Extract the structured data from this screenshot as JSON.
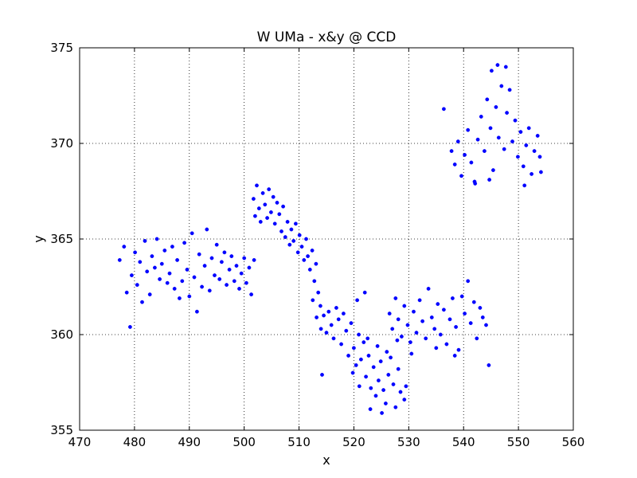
{
  "chart_data": {
    "type": "scatter",
    "title": "W UMa - x&y @ CCD",
    "xlabel": "x",
    "ylabel": "y",
    "xlim": [
      470,
      560
    ],
    "ylim": [
      355,
      375
    ],
    "x_ticks": [
      "470",
      "480",
      "490",
      "500",
      "510",
      "520",
      "530",
      "540",
      "550",
      "560"
    ],
    "y_ticks": [
      "355",
      "360",
      "365",
      "370",
      "375"
    ],
    "grid": true,
    "marker_color": "#0000ff",
    "series": [
      {
        "color": "#0000ff",
        "points": [
          [
            477.3,
            363.9
          ],
          [
            478.1,
            364.6
          ],
          [
            478.6,
            362.2
          ],
          [
            479.2,
            360.4
          ],
          [
            479.5,
            363.1
          ],
          [
            480.1,
            364.3
          ],
          [
            480.5,
            362.6
          ],
          [
            481.0,
            363.8
          ],
          [
            481.4,
            361.7
          ],
          [
            481.9,
            364.9
          ],
          [
            482.3,
            363.3
          ],
          [
            482.8,
            362.1
          ],
          [
            483.2,
            364.1
          ],
          [
            483.7,
            363.5
          ],
          [
            484.1,
            365.0
          ],
          [
            484.6,
            362.9
          ],
          [
            485.0,
            363.7
          ],
          [
            485.5,
            364.4
          ],
          [
            486.0,
            362.7
          ],
          [
            486.4,
            363.2
          ],
          [
            486.9,
            364.6
          ],
          [
            487.3,
            362.4
          ],
          [
            487.8,
            363.9
          ],
          [
            488.2,
            361.9
          ],
          [
            488.7,
            362.8
          ],
          [
            489.1,
            364.8
          ],
          [
            489.6,
            363.4
          ],
          [
            490.0,
            362.0
          ],
          [
            490.5,
            365.3
          ],
          [
            490.9,
            363.0
          ],
          [
            491.4,
            361.2
          ],
          [
            491.8,
            364.2
          ],
          [
            492.3,
            362.5
          ],
          [
            492.8,
            363.6
          ],
          [
            493.2,
            365.5
          ],
          [
            493.7,
            362.3
          ],
          [
            494.1,
            364.0
          ],
          [
            494.6,
            363.1
          ],
          [
            495.0,
            364.7
          ],
          [
            495.5,
            362.9
          ],
          [
            495.9,
            363.8
          ],
          [
            496.4,
            364.3
          ],
          [
            496.8,
            362.6
          ],
          [
            497.3,
            363.4
          ],
          [
            497.7,
            364.1
          ],
          [
            498.2,
            362.8
          ],
          [
            498.6,
            363.6
          ],
          [
            499.1,
            362.4
          ],
          [
            499.5,
            363.2
          ],
          [
            500.0,
            364.0
          ],
          [
            500.4,
            362.7
          ],
          [
            500.9,
            363.5
          ],
          [
            501.3,
            362.1
          ],
          [
            501.8,
            363.9
          ],
          [
            501.7,
            367.1
          ],
          [
            502.0,
            366.2
          ],
          [
            502.3,
            367.8
          ],
          [
            502.7,
            366.6
          ],
          [
            503.0,
            365.9
          ],
          [
            503.4,
            367.4
          ],
          [
            503.8,
            366.8
          ],
          [
            504.2,
            366.1
          ],
          [
            504.5,
            367.6
          ],
          [
            504.9,
            366.4
          ],
          [
            505.3,
            367.2
          ],
          [
            505.6,
            365.8
          ],
          [
            506.0,
            366.9
          ],
          [
            506.4,
            366.3
          ],
          [
            506.8,
            365.4
          ],
          [
            507.1,
            366.7
          ],
          [
            507.5,
            365.1
          ],
          [
            507.9,
            365.9
          ],
          [
            508.3,
            364.7
          ],
          [
            508.6,
            365.5
          ],
          [
            509.0,
            364.9
          ],
          [
            509.4,
            365.8
          ],
          [
            509.8,
            364.3
          ],
          [
            510.1,
            365.2
          ],
          [
            510.5,
            364.6
          ],
          [
            510.9,
            363.9
          ],
          [
            511.3,
            365.0
          ],
          [
            511.6,
            364.1
          ],
          [
            512.0,
            363.4
          ],
          [
            512.4,
            364.4
          ],
          [
            512.8,
            362.8
          ],
          [
            513.1,
            363.7
          ],
          [
            513.5,
            362.2
          ],
          [
            513.9,
            361.5
          ],
          [
            512.5,
            361.8
          ],
          [
            513.2,
            360.9
          ],
          [
            514.0,
            360.3
          ],
          [
            514.2,
            357.9
          ],
          [
            514.5,
            361.0
          ],
          [
            515.0,
            360.1
          ],
          [
            515.4,
            361.2
          ],
          [
            515.9,
            360.5
          ],
          [
            516.3,
            359.8
          ],
          [
            516.8,
            361.4
          ],
          [
            517.2,
            360.8
          ],
          [
            517.7,
            359.5
          ],
          [
            518.1,
            361.1
          ],
          [
            518.6,
            360.2
          ],
          [
            519.0,
            358.9
          ],
          [
            519.5,
            360.6
          ],
          [
            520.0,
            359.3
          ],
          [
            520.4,
            358.4
          ],
          [
            520.9,
            360.0
          ],
          [
            521.3,
            358.7
          ],
          [
            521.8,
            359.6
          ],
          [
            522.2,
            357.8
          ],
          [
            522.7,
            358.9
          ],
          [
            523.1,
            357.2
          ],
          [
            523.6,
            358.3
          ],
          [
            524.0,
            356.8
          ],
          [
            524.5,
            357.6
          ],
          [
            524.9,
            358.6
          ],
          [
            525.4,
            357.1
          ],
          [
            525.8,
            356.4
          ],
          [
            526.3,
            357.9
          ],
          [
            526.7,
            358.8
          ],
          [
            527.2,
            357.4
          ],
          [
            527.6,
            356.2
          ],
          [
            528.1,
            358.2
          ],
          [
            528.5,
            357.0
          ],
          [
            523.0,
            356.1
          ],
          [
            525.1,
            355.9
          ],
          [
            519.8,
            358.0
          ],
          [
            521.0,
            357.3
          ],
          [
            526.0,
            359.1
          ],
          [
            522.5,
            359.8
          ],
          [
            524.3,
            359.4
          ],
          [
            520.6,
            361.8
          ],
          [
            522.0,
            362.2
          ],
          [
            529.2,
            356.6
          ],
          [
            527.9,
            359.7
          ],
          [
            526.5,
            361.1
          ],
          [
            527.0,
            360.3
          ],
          [
            527.6,
            361.9
          ],
          [
            528.1,
            360.8
          ],
          [
            528.7,
            359.9
          ],
          [
            529.2,
            361.5
          ],
          [
            529.8,
            360.5
          ],
          [
            530.3,
            359.6
          ],
          [
            530.9,
            361.2
          ],
          [
            531.4,
            360.1
          ],
          [
            532.0,
            361.8
          ],
          [
            532.5,
            360.7
          ],
          [
            533.1,
            359.8
          ],
          [
            533.6,
            362.4
          ],
          [
            534.2,
            360.9
          ],
          [
            534.7,
            360.3
          ],
          [
            535.3,
            361.6
          ],
          [
            535.8,
            360.0
          ],
          [
            536.4,
            361.3
          ],
          [
            536.9,
            359.5
          ],
          [
            537.5,
            360.8
          ],
          [
            538.0,
            361.9
          ],
          [
            538.6,
            360.4
          ],
          [
            539.1,
            359.2
          ],
          [
            539.7,
            362.0
          ],
          [
            540.2,
            361.1
          ],
          [
            540.8,
            362.8
          ],
          [
            541.3,
            360.6
          ],
          [
            541.9,
            361.7
          ],
          [
            542.4,
            359.8
          ],
          [
            543.0,
            361.4
          ],
          [
            543.5,
            360.9
          ],
          [
            544.1,
            360.5
          ],
          [
            544.6,
            358.4
          ],
          [
            530.5,
            359.0
          ],
          [
            535.0,
            359.3
          ],
          [
            538.4,
            358.9
          ],
          [
            529.5,
            357.3
          ],
          [
            537.8,
            369.6
          ],
          [
            538.4,
            368.9
          ],
          [
            539.0,
            370.1
          ],
          [
            539.6,
            368.3
          ],
          [
            540.2,
            369.4
          ],
          [
            540.8,
            370.7
          ],
          [
            541.4,
            369.0
          ],
          [
            542.0,
            368.0
          ],
          [
            542.6,
            370.2
          ],
          [
            543.2,
            371.4
          ],
          [
            543.8,
            369.6
          ],
          [
            544.3,
            372.3
          ],
          [
            544.9,
            370.8
          ],
          [
            545.4,
            368.6
          ],
          [
            545.9,
            371.9
          ],
          [
            546.4,
            370.3
          ],
          [
            546.9,
            373.0
          ],
          [
            547.4,
            369.7
          ],
          [
            547.9,
            371.6
          ],
          [
            548.4,
            372.8
          ],
          [
            548.9,
            370.1
          ],
          [
            549.4,
            371.2
          ],
          [
            549.9,
            369.3
          ],
          [
            550.4,
            370.6
          ],
          [
            550.9,
            368.8
          ],
          [
            551.4,
            369.9
          ],
          [
            551.9,
            370.8
          ],
          [
            552.4,
            368.4
          ],
          [
            552.9,
            369.6
          ],
          [
            553.5,
            370.4
          ],
          [
            554.1,
            368.5
          ],
          [
            545.1,
            373.8
          ],
          [
            546.2,
            374.1
          ],
          [
            547.7,
            374.0
          ],
          [
            536.4,
            371.8
          ],
          [
            542.1,
            367.9
          ],
          [
            551.1,
            367.8
          ],
          [
            553.9,
            369.3
          ],
          [
            544.7,
            368.1
          ]
        ]
      }
    ]
  }
}
